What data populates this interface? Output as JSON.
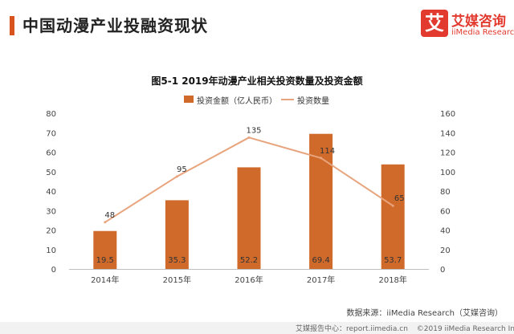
{
  "page": {
    "title": "中国动漫产业投融资现状"
  },
  "logo": {
    "mark_char": "艾",
    "name_cn": "艾媒咨询",
    "name_en": "iiMedia Research"
  },
  "footer": {
    "source": "数据来源：iiMedia Research（艾媒咨询）",
    "center": "艾媒报告中心：report.iimedia.cn",
    "copyright": "©2019  iiMedia Research Inc"
  },
  "colors": {
    "accent": "#d9531e",
    "bar": "#d06a2a",
    "line": "#e8a47d",
    "brand": "#e23a2e"
  },
  "chart_data": {
    "type": "bar",
    "title": "图5-1 2019年动漫产业相关投资数量及投资金额",
    "categories": [
      "2014年",
      "2015年",
      "2016年",
      "2017年",
      "2018年"
    ],
    "series": [
      {
        "name": "投资金额（亿人民币）",
        "type": "bar",
        "axis": "left",
        "values": [
          19.5,
          35.3,
          52.2,
          69.4,
          53.7
        ]
      },
      {
        "name": "投资数量",
        "type": "line",
        "axis": "right",
        "values": [
          48,
          95,
          135,
          114,
          65
        ]
      }
    ],
    "ylim_left": [
      0,
      80
    ],
    "yticks_left": [
      0,
      10,
      20,
      30,
      40,
      50,
      60,
      70,
      80
    ],
    "ylim_right": [
      0,
      160
    ],
    "yticks_right": [
      0,
      20,
      40,
      60,
      80,
      100,
      120,
      140,
      160
    ],
    "grid": false,
    "legend": "top-center"
  }
}
